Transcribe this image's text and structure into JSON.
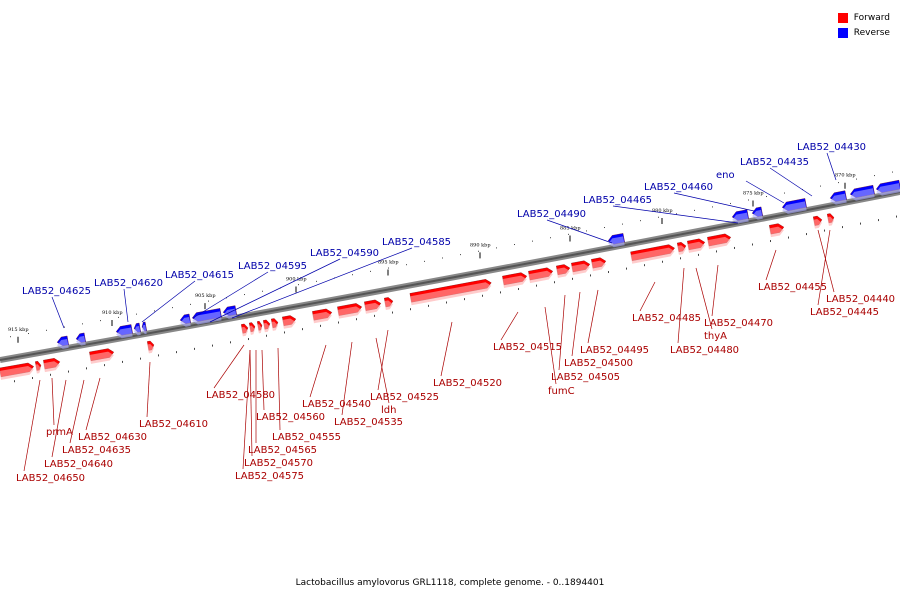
{
  "legend": {
    "forward": {
      "label": "Forward",
      "color": "#ff0000"
    },
    "reverse": {
      "label": "Reverse",
      "color": "#0000ff"
    }
  },
  "caption": "Lactobacillus amylovorus GRL1118, complete genome. - 0..1894401",
  "scale_labels": [
    "870 kbp",
    "875 kbp",
    "880 kbp",
    "885 kbp",
    "890 kbp",
    "895 kbp",
    "900 kbp",
    "905 kbp",
    "910 kbp",
    "915 kbp"
  ],
  "reverse_labels": [
    "LAB52_04430",
    "LAB52_04435",
    "eno",
    "LAB52_04460",
    "LAB52_04465",
    "LAB52_04490",
    "LAB52_04585",
    "LAB52_04590",
    "LAB52_04595",
    "LAB52_04615",
    "LAB52_04620",
    "LAB52_04625"
  ],
  "forward_labels": [
    "LAB52_04455",
    "LAB52_04440",
    "LAB52_04445",
    "LAB52_04485",
    "LAB52_04470",
    "thyA",
    "LAB52_04480",
    "LAB52_04515",
    "LAB52_04495",
    "LAB52_04500",
    "LAB52_04505",
    "fumC",
    "LAB52_04520",
    "LAB52_04525",
    "ldh",
    "LAB52_04535",
    "LAB52_04540",
    "LAB52_04580",
    "LAB52_04560",
    "LAB52_04555",
    "LAB52_04565",
    "LAB52_04570",
    "LAB52_04575",
    "LAB52_04610",
    "prmA",
    "LAB52_04630",
    "LAB52_04635",
    "LAB52_04640",
    "LAB52_04650"
  ]
}
